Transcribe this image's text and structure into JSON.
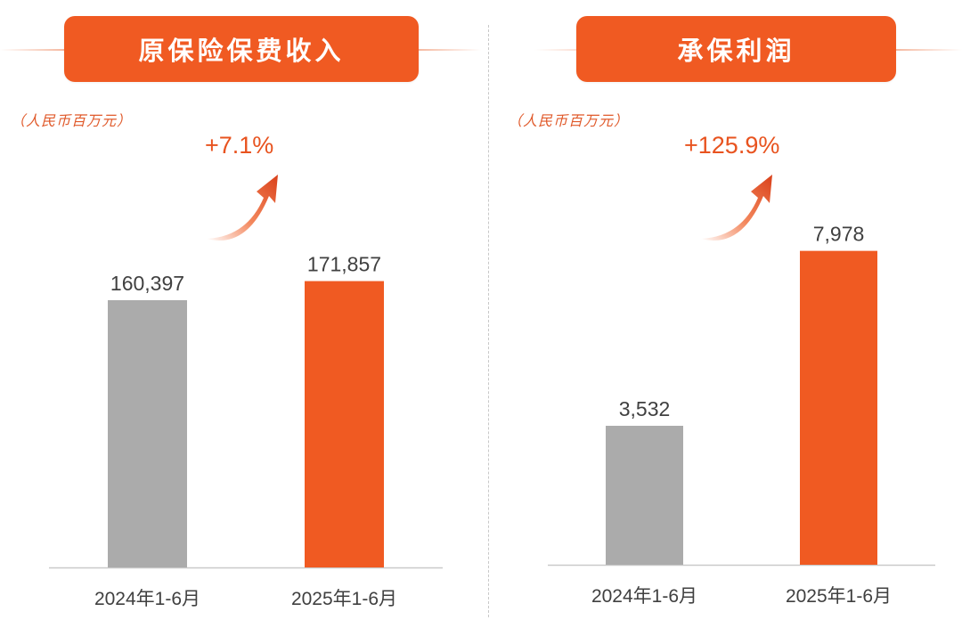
{
  "chart_data": [
    {
      "type": "bar",
      "title": "原保险保费收入",
      "unit": "（人民币百万元）",
      "categories": [
        "2024年1-6月",
        "2025年1-6月"
      ],
      "values": [
        160397,
        171857
      ],
      "value_labels": [
        "160,397",
        "171,857"
      ],
      "growth": "+7.1%",
      "colors": [
        "#ababab",
        "#f05a22"
      ]
    },
    {
      "type": "bar",
      "title": "承保利润",
      "unit": "（人民币百万元）",
      "categories": [
        "2024年1-6月",
        "2025年1-6月"
      ],
      "values": [
        3532,
        7978
      ],
      "value_labels": [
        "3,532",
        "7,978"
      ],
      "growth": "+125.9%",
      "colors": [
        "#ababab",
        "#f05a22"
      ]
    }
  ]
}
